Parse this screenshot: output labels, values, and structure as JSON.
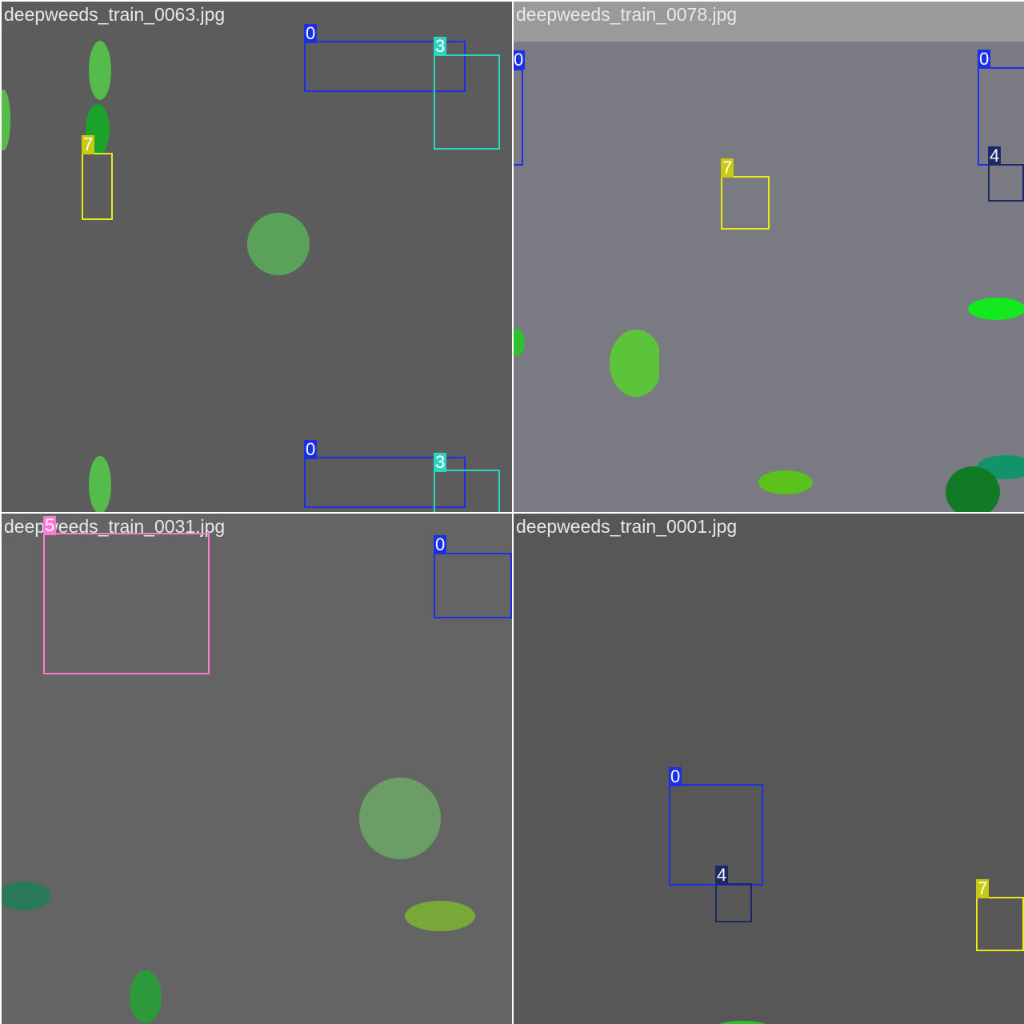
{
  "class_colors": {
    "0": "#1a2fe6",
    "3": "#2ad6c0",
    "4": "#1b2a66",
    "5": "#ff7ad0",
    "7": "#e8e814"
  },
  "tiles": [
    {
      "filename": "deepweeds_train_0063.jpg",
      "background": "#5c5c5c",
      "labels": [
        "0",
        "3",
        "7",
        "0",
        "3"
      ]
    },
    {
      "filename": "deepweeds_train_0078.jpg",
      "background": "#7a7a82",
      "labels": [
        "0",
        "0",
        "7",
        "4"
      ]
    },
    {
      "filename": "deepweeds_train_0031.jpg",
      "background": "#646464",
      "labels": [
        "5",
        "0"
      ]
    },
    {
      "filename": "deepweeds_train_0001.jpg",
      "background": "#575757",
      "labels": [
        "0",
        "4",
        "7"
      ]
    }
  ]
}
